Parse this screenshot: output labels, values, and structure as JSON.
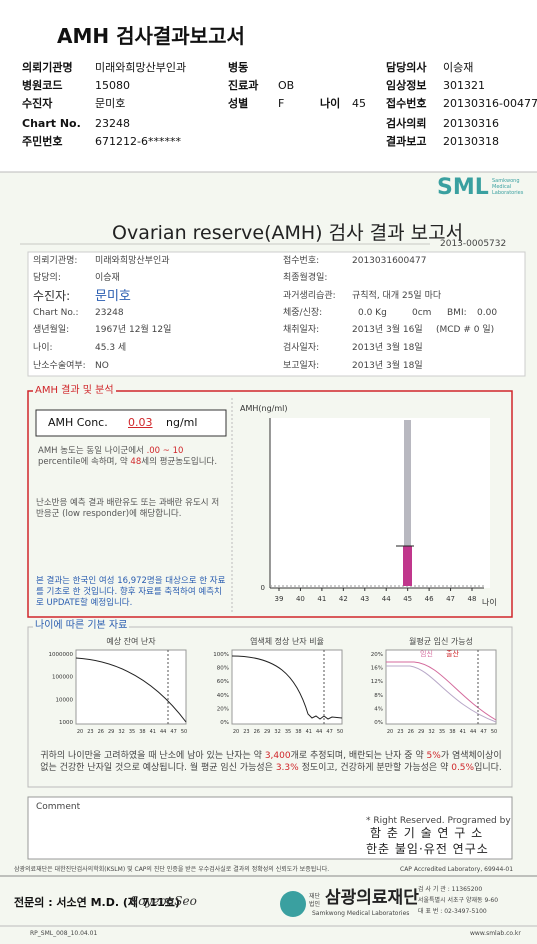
{
  "header": {
    "title": "AMH 검사결과보고서",
    "requester_label": "의뢰기관명",
    "requester": "미래와희망산부인과",
    "ward_label": "병동",
    "doctor_label": "담당의사",
    "doctor": "이승재",
    "hospital_code_label": "병원코드",
    "hospital_code": "15080",
    "dept_label": "진료과",
    "dept": "OB",
    "clinical_label": "임상정보",
    "clinical": "301321",
    "patient_label": "수진자",
    "patient": "문미호",
    "sex_label": "성별",
    "sex": "F",
    "age_label": "나이",
    "age": "45",
    "receipt_label": "접수번호",
    "receipt": "20130316-00477",
    "chart_label": "Chart No.",
    "chart": "23248",
    "request_date_label": "검사의뢰",
    "request_date": "20130316",
    "id_label": "주민번호",
    "id": "671212-6******",
    "report_date_label": "결과보고",
    "report_date": "20130318"
  },
  "report": {
    "logo": "SML",
    "logo_sub": "Samkwong Medical Laboratories",
    "title": "Ovarian reserve(AMH) 검사 결과 보고서",
    "doc_no": "2013-0005732",
    "info": {
      "requester_label": "의뢰기관명:",
      "requester": "미래와희망산부인과",
      "doctor_label": "담당의:",
      "doctor": "이승재",
      "patient_label": "수진자:",
      "patient": "문미호",
      "chart_label": "Chart No.:",
      "chart": "23248",
      "birth_label": "생년월일:",
      "birth": "1967년 12월 12일",
      "age_label": "나이:",
      "age": "45.3 세",
      "surgery_label": "난소수술여부:",
      "surgery": "NO",
      "receipt_label": "접수번호:",
      "receipt": "2013031600477",
      "lmp_label": "최종월경일:",
      "cycle_label": "과거생리습관:",
      "cycle": "규칙적, 대개 25일 마다",
      "body_label": "체중/신장:",
      "weight": "0.0 Kg",
      "height": "0cm",
      "bmi_label": "BMI:",
      "bmi": "0.00",
      "sample_label": "채취일자:",
      "sample": "2013년 3월 16일",
      "mcd": "(MCD # 0 일)",
      "test_label": "검사일자:",
      "test": "2013년 3월 18일",
      "report_label": "보고일자:",
      "report": "2013년 3월 18일"
    },
    "amh": {
      "heading": "AMH 결과 및 분석",
      "conc_label": "AMH Conc.",
      "conc": 0.03,
      "unit": "ng/ml",
      "note": [
        "AMH 농도는 동일 나이군에서 ",
        ".00 ~ 10",
        " percentile에 속하며, 약 ",
        "48",
        "세의 평균농도입니다."
      ],
      "response": "난소반응 예측 결과 배란유도 또는 과배란 유도시 저반응군 (low responder)에 해당합니다.",
      "source": "본 결과는 한국인 여성 16,972명을 대상으로 한 자료를 기초로 한 것입니다. 향후 자료를 축적하여 예측치로 UPDATE할 예정입니다.",
      "chart": {
        "y_label": "AMH(ng/ml)",
        "y_zero": 0,
        "x_ticks": [
          39,
          40,
          41,
          42,
          43,
          44,
          45,
          46,
          47,
          48
        ],
        "x_label": "나이"
      }
    },
    "basic": {
      "heading": "나이에 따른 기본 자료",
      "charts": [
        {
          "title": "예상 잔여 난자",
          "y_ticks": [
            1000000,
            100000,
            10000,
            1000
          ],
          "x_ticks": [
            20,
            23,
            26,
            29,
            32,
            35,
            38,
            41,
            44,
            47,
            50
          ]
        },
        {
          "title": "염색체 정상 난자 비율",
          "y_ticks": [
            "100%",
            "80%",
            "60%",
            "40%",
            "20%",
            "0%"
          ],
          "x_ticks": [
            20,
            23,
            26,
            29,
            32,
            35,
            38,
            41,
            44,
            47,
            50
          ]
        },
        {
          "title": "월평균 임신 가능성",
          "legend": [
            "임신",
            "출산"
          ],
          "y_ticks": [
            "20%",
            "16%",
            "12%",
            "8%",
            "4%",
            "0%"
          ],
          "x_ticks": [
            20,
            23,
            26,
            29,
            32,
            35,
            38,
            41,
            44,
            47,
            50
          ]
        }
      ],
      "summary": [
        "귀하의 나이만을 고려하였을 때 난소에 남아 있는 난자는 약 ",
        "3,400",
        "개로 추정되며, 배란되는 난자 중 약 ",
        "5%",
        "가 염색체이상이 없는 건강한 난자일 것으로 예상됩니다. 월 평균 임신 가능성은 ",
        "3.3%",
        " 정도이고, 건강하게 분만할 가능성은 약 ",
        "0.5%",
        "입니다."
      ]
    },
    "comment": {
      "label": "Comment",
      "credit": "* Right Reserved. Programed by",
      "org1": "함 춘 기 술 연 구 소",
      "org2": "한춘 불임·유전 연구소"
    },
    "footer": {
      "accreditation": "삼광의료재단은 대한진단검사의학회(KSLM) 및 CAP의 진단 인증을 받은 우수검사실로 결과의 정확성의 신뢰도가 보증됩니다.",
      "cap": "CAP Accredited Laboratory, 69944-01",
      "specialist": "전문의 : 서소연 M.D. (제 711호)",
      "signature": "SoyeonSeo",
      "foundation_tag": "재단 법인",
      "foundation": "삼광의료재단",
      "foundation_en": "Samkwong Medical Laboratories",
      "lab_no": "검 사 기 관 : 11365200",
      "address": "서울특별시 서초구 양재동 9-60",
      "phone": "대 표 번 : 02-3497-5100",
      "form_no": "RP_SML_008_10.04.01",
      "web": "www.smlab.co.kr"
    }
  }
}
